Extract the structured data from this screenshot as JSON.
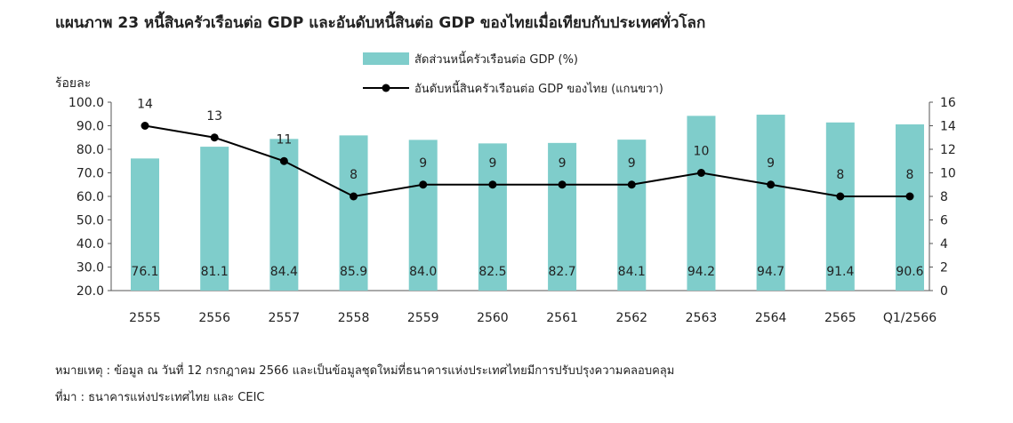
{
  "title": "แผนภาพ  23  หนี้สินครัวเรือนต่อ GDP และอันดับหนี้สินต่อ GDP ของไทยเมื่อเทียบกับประเทศทั่วโลก",
  "footnote": "หมายเหตุ : ข้อมูล ณ วันที่ 12 กรกฎาคม 2566 และเป็นข้อมูลชุดใหม่ที่ธนาคารแห่งประเทศไทยมีการปรับปรุงความคลอบคลุม",
  "source": "ที่มา : ธนาคารแห่งประเทศไทย และ CEIC",
  "colors": {
    "bar": "#7fcdcb",
    "line": "#000000"
  },
  "chart_data": {
    "type": "bar+line",
    "categories": [
      "2555",
      "2556",
      "2557",
      "2558",
      "2559",
      "2560",
      "2561",
      "2562",
      "2563",
      "2564",
      "2565",
      "Q1/2566"
    ],
    "series": [
      {
        "name": "สัดส่วนหนี้ครัวเรือนต่อ GDP (%)",
        "type": "bar",
        "axis": "left",
        "values": [
          76.1,
          81.1,
          84.4,
          85.9,
          84.0,
          82.5,
          82.7,
          84.1,
          94.2,
          94.7,
          91.4,
          90.6
        ],
        "labels": [
          "76.1",
          "81.1",
          "84.4",
          "85.9",
          "84.0",
          "82.5",
          "82.7",
          "84.1",
          "94.2",
          "94.7",
          "91.4",
          "90.6"
        ]
      },
      {
        "name": "อันดับหนี้สินครัวเรือนต่อ GDP ของไทย (แกนขวา)",
        "type": "line",
        "axis": "right",
        "values": [
          14,
          13,
          11,
          8,
          9,
          9,
          9,
          9,
          10,
          9,
          8,
          8
        ]
      }
    ],
    "y_left": {
      "label": "ร้อยละ",
      "min": 20,
      "max": 100,
      "ticks": [
        "20.0",
        "30.0",
        "40.0",
        "50.0",
        "60.0",
        "70.0",
        "80.0",
        "90.0",
        "100.0"
      ]
    },
    "y_right": {
      "min": 0,
      "max": 16,
      "ticks": [
        "0",
        "2",
        "4",
        "6",
        "8",
        "10",
        "12",
        "14",
        "16"
      ]
    },
    "legend_position": "top-center"
  }
}
